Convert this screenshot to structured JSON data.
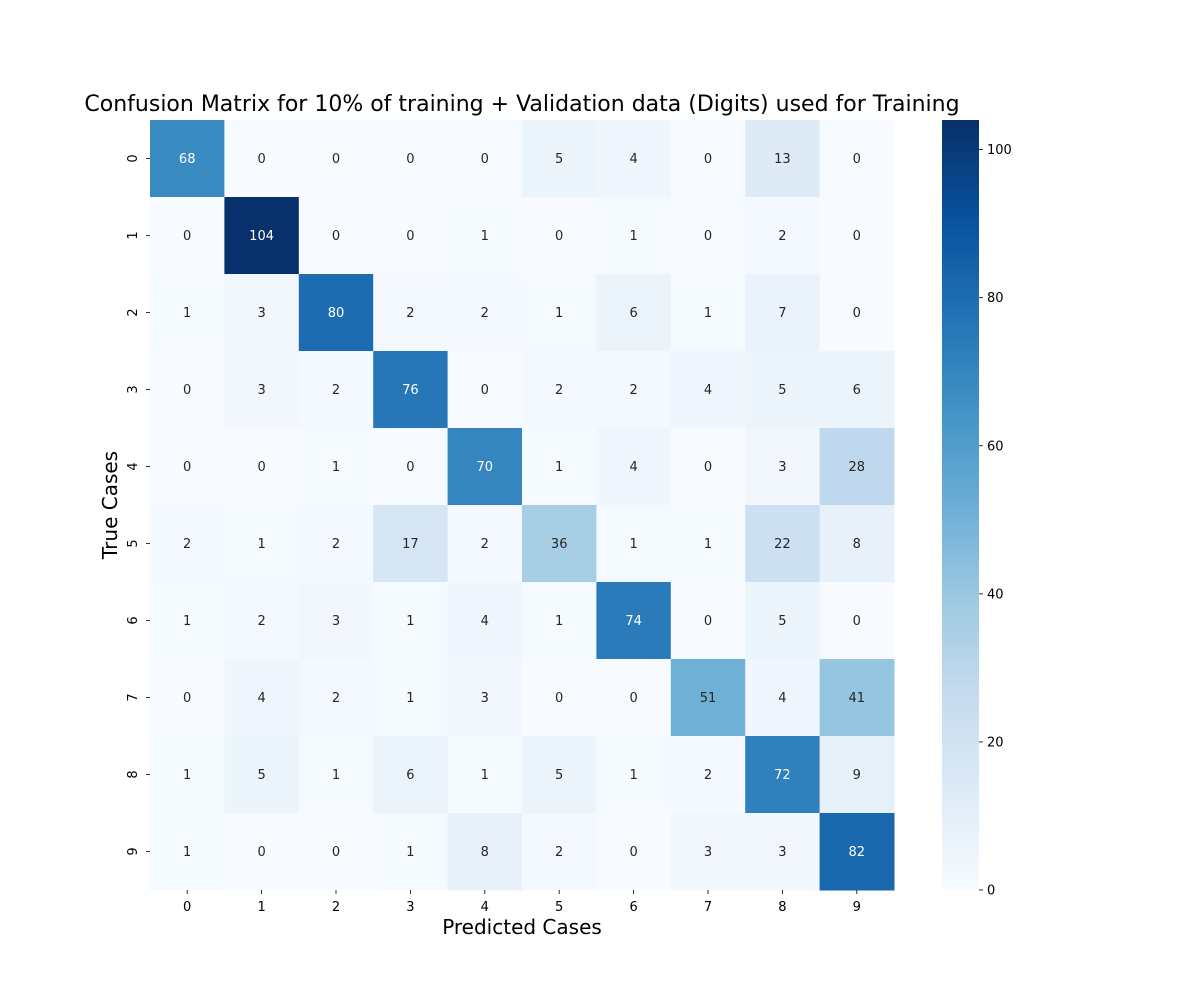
{
  "chart_data": {
    "type": "heatmap",
    "title": "Confusion Matrix for 10% of training + Validation data (Digits) used for Training",
    "xlabel": "Predicted Cases",
    "ylabel": "True Cases",
    "x_categories": [
      "0",
      "1",
      "2",
      "3",
      "4",
      "5",
      "6",
      "7",
      "8",
      "9"
    ],
    "y_categories": [
      "0",
      "1",
      "2",
      "3",
      "4",
      "5",
      "6",
      "7",
      "8",
      "9"
    ],
    "values": [
      [
        68,
        0,
        0,
        0,
        0,
        5,
        4,
        0,
        13,
        0
      ],
      [
        0,
        104,
        0,
        0,
        1,
        0,
        1,
        0,
        2,
        0
      ],
      [
        1,
        3,
        80,
        2,
        2,
        1,
        6,
        1,
        7,
        0
      ],
      [
        0,
        3,
        2,
        76,
        0,
        2,
        2,
        4,
        5,
        6
      ],
      [
        0,
        0,
        1,
        0,
        70,
        1,
        4,
        0,
        3,
        28
      ],
      [
        2,
        1,
        2,
        17,
        2,
        36,
        1,
        1,
        22,
        8
      ],
      [
        1,
        2,
        3,
        1,
        4,
        1,
        74,
        0,
        5,
        0
      ],
      [
        0,
        4,
        2,
        1,
        3,
        0,
        0,
        51,
        4,
        41
      ],
      [
        1,
        5,
        1,
        6,
        1,
        5,
        1,
        2,
        72,
        9
      ],
      [
        1,
        0,
        0,
        1,
        8,
        2,
        0,
        3,
        3,
        82
      ]
    ],
    "colormap": "Blues",
    "colorbar": {
      "range": [
        0,
        104
      ],
      "ticks": [
        "0",
        "20",
        "40",
        "60",
        "80",
        "100"
      ]
    },
    "grid": false,
    "legend": "colorbar-right"
  }
}
